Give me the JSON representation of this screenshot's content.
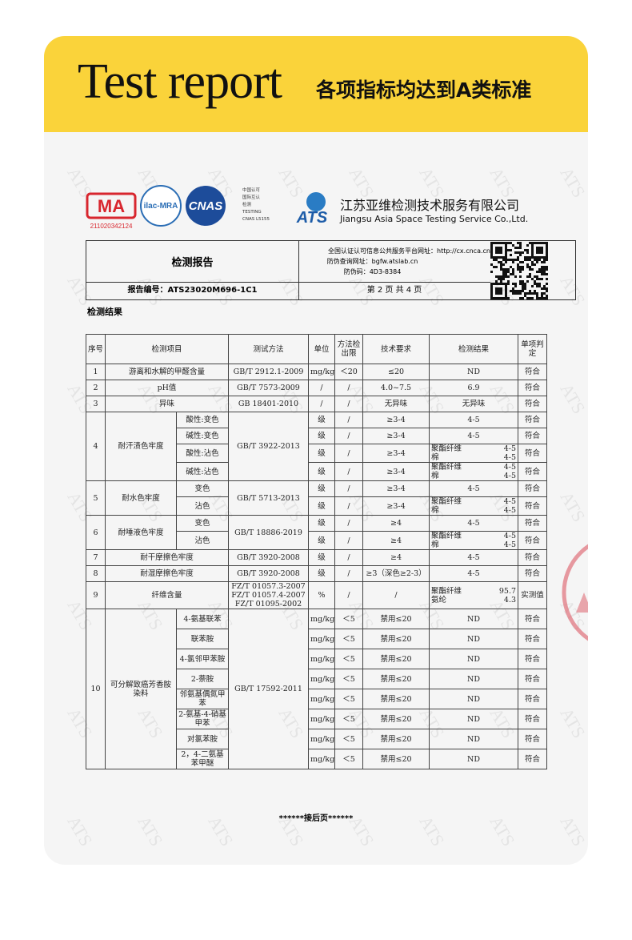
{
  "header": {
    "title_en": "Test report",
    "title_cn": "各项指标均达到A类标准"
  },
  "watermark": "ATS",
  "logos": {
    "cma": "MA",
    "cma_number": "211020342124",
    "ilac": "ilac-MRA",
    "cnas": "CNAS",
    "cnas_lines": [
      "中国认可",
      "国际互认",
      "检测",
      "TESTING",
      "CNAS L5155"
    ],
    "ats": "ATS",
    "company_cn": "江苏亚维检测技术服务有限公司",
    "company_en": "Jiangsu Asia Space Testing Service Co.,Ltd."
  },
  "report": {
    "title": "检测报告",
    "url_line": "全国认证认可信息公共服务平台网址：http://cx.cnca.cn",
    "check_url": "防伪查询网址：bgfw.atslab.cn",
    "code": "防伪码：4D3-8384",
    "report_no": "报告编号：ATS23020M696-1C1",
    "page": "第 2 页 共 4 页"
  },
  "section_title": "检测结果",
  "table": {
    "headers": [
      "序号",
      "检测项目",
      "测试方法",
      "单位",
      "方法检出限",
      "技术要求",
      "检测结果",
      "单项判定"
    ],
    "rows": [
      {
        "no": "1",
        "item": "游离和水解的甲醛含量",
        "method": [
          "GB/T 2912.1-2009"
        ],
        "lines": [
          {
            "unit": "mg/kg",
            "limit": "＜20",
            "requirement": "≤20",
            "result": "ND",
            "verdict": "符合"
          }
        ]
      },
      {
        "no": "2",
        "item": "pH值",
        "method": [
          "GB/T 7573-2009"
        ],
        "lines": [
          {
            "unit": "/",
            "limit": "/",
            "requirement": "4.0~7.5",
            "result": "6.9",
            "verdict": "符合"
          }
        ]
      },
      {
        "no": "3",
        "item": "异味",
        "method": [
          "GB 18401-2010"
        ],
        "lines": [
          {
            "unit": "/",
            "limit": "/",
            "requirement": "无异味",
            "result": "无异味",
            "verdict": "符合"
          }
        ]
      },
      {
        "no": "4",
        "item": "耐汗渍色牢度",
        "method": [
          "GB/T 3922-2013"
        ],
        "lines": [
          {
            "sub": "酸性:变色",
            "unit": "级",
            "limit": "/",
            "requirement": "≥3-4",
            "result": "4-5",
            "verdict": "符合"
          },
          {
            "sub": "碱性:变色",
            "unit": "级",
            "limit": "/",
            "requirement": "≥3-4",
            "result": "4-5",
            "verdict": "符合"
          },
          {
            "sub": "酸性:沾色",
            "unit": "级",
            "limit": "/",
            "requirement": "≥3-4",
            "result": [
              {
                "name": "聚酯纤维",
                "value": "4-5"
              },
              {
                "name": "棉",
                "value": "4-5"
              }
            ],
            "verdict": "符合"
          },
          {
            "sub": "碱性:沾色",
            "unit": "级",
            "limit": "/",
            "requirement": "≥3-4",
            "result": [
              {
                "name": "聚酯纤维",
                "value": "4-5"
              },
              {
                "name": "棉",
                "value": "4-5"
              }
            ],
            "verdict": "符合"
          }
        ]
      },
      {
        "no": "5",
        "item": "耐水色牢度",
        "method": [
          "GB/T 5713-2013"
        ],
        "lines": [
          {
            "sub": "变色",
            "unit": "级",
            "limit": "/",
            "requirement": "≥3-4",
            "result": "4-5",
            "verdict": "符合"
          },
          {
            "sub": "沾色",
            "unit": "级",
            "limit": "/",
            "requirement": "≥3-4",
            "result": [
              {
                "name": "聚酯纤维",
                "value": "4-5"
              },
              {
                "name": "棉",
                "value": "4-5"
              }
            ],
            "verdict": "符合"
          }
        ]
      },
      {
        "no": "6",
        "item": "耐唾液色牢度",
        "method": [
          "GB/T  18886-2019"
        ],
        "lines": [
          {
            "sub": "变色",
            "unit": "级",
            "limit": "/",
            "requirement": "≥4",
            "result": "4-5",
            "verdict": "符合"
          },
          {
            "sub": "沾色",
            "unit": "级",
            "limit": "/",
            "requirement": "≥4",
            "result": [
              {
                "name": "聚酯纤维",
                "value": "4-5"
              },
              {
                "name": "棉",
                "value": "4-5"
              }
            ],
            "verdict": "符合"
          }
        ]
      },
      {
        "no": "7",
        "item": "耐干摩擦色牢度",
        "method": [
          "GB/T 3920-2008"
        ],
        "lines": [
          {
            "unit": "级",
            "limit": "/",
            "requirement": "≥4",
            "result": "4-5",
            "verdict": "符合"
          }
        ]
      },
      {
        "no": "8",
        "item": "耐湿摩擦色牢度",
        "method": [
          "GB/T 3920-2008"
        ],
        "lines": [
          {
            "unit": "级",
            "limit": "/",
            "requirement": "≥3（深色≥2-3）",
            "result": "4-5",
            "verdict": "符合"
          }
        ]
      },
      {
        "no": "9",
        "item": "纤维含量",
        "method": [
          "FZ/T 01057.3-2007",
          "FZ/T 01057.4-2007",
          "FZ/T 01095-2002"
        ],
        "lines": [
          {
            "unit": "%",
            "limit": "/",
            "requirement": "/",
            "result": [
              {
                "name": "聚酯纤维",
                "value": "95.7"
              },
              {
                "name": "氨纶",
                "value": "4.3"
              }
            ],
            "verdict": "实测值"
          }
        ]
      },
      {
        "no": "10",
        "item": "可分解致癌芳香胺染料",
        "method": [
          "GB/T 17592-2011"
        ],
        "lines": [
          {
            "sub": "4-氨基联苯",
            "unit": "mg/kg",
            "limit": "＜5",
            "requirement": "禁用≤20",
            "result": "ND",
            "verdict": "符合"
          },
          {
            "sub": "联苯胺",
            "unit": "mg/kg",
            "limit": "＜5",
            "requirement": "禁用≤20",
            "result": "ND",
            "verdict": "符合"
          },
          {
            "sub": "4-氯邻甲苯胺",
            "unit": "mg/kg",
            "limit": "＜5",
            "requirement": "禁用≤20",
            "result": "ND",
            "verdict": "符合"
          },
          {
            "sub": "2-萘胺",
            "unit": "mg/kg",
            "limit": "＜5",
            "requirement": "禁用≤20",
            "result": "ND",
            "verdict": "符合"
          },
          {
            "sub": "邻氨基偶氮甲苯",
            "unit": "mg/kg",
            "limit": "＜5",
            "requirement": "禁用≤20",
            "result": "ND",
            "verdict": "符合"
          },
          {
            "sub": "2-氨基-4-硝基甲苯",
            "unit": "mg/kg",
            "limit": "＜5",
            "requirement": "禁用≤20",
            "result": "ND",
            "verdict": "符合"
          },
          {
            "sub": "对氯苯胺",
            "unit": "mg/kg",
            "limit": "＜5",
            "requirement": "禁用≤20",
            "result": "ND",
            "verdict": "符合"
          },
          {
            "sub": "2，4-二氨基苯甲醚",
            "unit": "mg/kg",
            "limit": "＜5",
            "requirement": "禁用≤20",
            "result": "ND",
            "verdict": "符合"
          }
        ]
      }
    ]
  },
  "footer": "******接后页******"
}
